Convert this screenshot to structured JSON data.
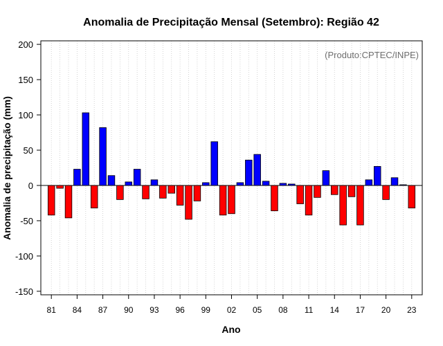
{
  "chart_data": {
    "type": "bar",
    "title": "Anomalia de Precipitação Mensal (Setembro): Região 42",
    "xlabel": "Ano",
    "ylabel": "Anomalia de precipitação (mm)",
    "credit": "(Produto:CPTEC/INPE)",
    "ylim": [
      -155,
      205
    ],
    "yticks": [
      -150,
      -100,
      -50,
      0,
      50,
      100,
      150,
      200
    ],
    "grid": "vertical dotted",
    "positive_color": "#0000ff",
    "negative_color": "#ff0000",
    "categories": [
      "1981",
      "1982",
      "1983",
      "1984",
      "1985",
      "1986",
      "1987",
      "1988",
      "1989",
      "1990",
      "1991",
      "1992",
      "1993",
      "1994",
      "1995",
      "1996",
      "1997",
      "1998",
      "1999",
      "2000",
      "2001",
      "2002",
      "2003",
      "2004",
      "2005",
      "2006",
      "2007",
      "2008",
      "2009",
      "2010",
      "2011",
      "2012",
      "2013",
      "2014",
      "2015",
      "2016",
      "2017",
      "2018",
      "2019",
      "2020",
      "2021",
      "2022",
      "2023"
    ],
    "values": [
      -42,
      -4,
      -46,
      23,
      103,
      -32,
      82,
      14,
      -20,
      5,
      23,
      -19,
      8,
      -18,
      -11,
      -28,
      -48,
      -22,
      4,
      62,
      -42,
      -40,
      4,
      36,
      44,
      6,
      -36,
      3,
      2,
      -26,
      -42,
      -17,
      21,
      -13,
      -56,
      -16,
      -56,
      8,
      27,
      -20,
      11,
      1,
      -32
    ],
    "xtick_labels": [
      "81",
      "84",
      "87",
      "90",
      "93",
      "96",
      "99",
      "02",
      "05",
      "08",
      "11",
      "14",
      "17",
      "20",
      "23"
    ],
    "xtick_every": 3
  }
}
